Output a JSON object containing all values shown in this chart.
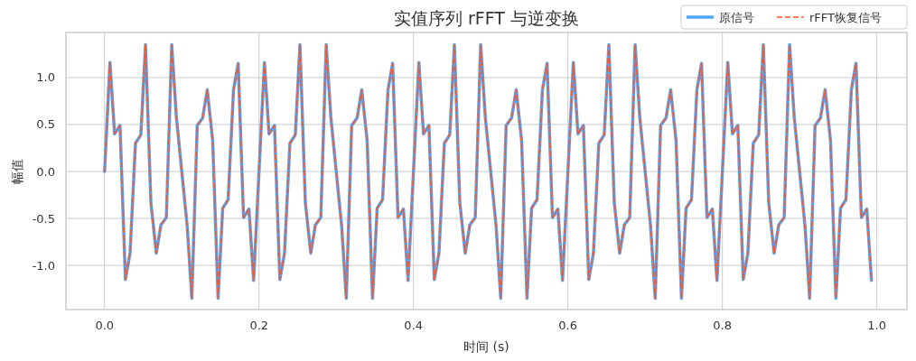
{
  "chart_data": {
    "type": "line",
    "title": "实值序列 rFFT 与逆变换",
    "xlabel": "时间 (s)",
    "ylabel": "幅值",
    "x": [
      0.0,
      0.007,
      0.013,
      0.02,
      0.027,
      0.033,
      0.04,
      0.047,
      0.053,
      0.06,
      0.067,
      0.073,
      0.08,
      0.087,
      0.093,
      0.1,
      0.107,
      0.113,
      0.12,
      0.127,
      0.133,
      0.14,
      0.147,
      0.153,
      0.16,
      0.167,
      0.173,
      0.18,
      0.187,
      0.193,
      0.2,
      0.207,
      0.213,
      0.22,
      0.227,
      0.233,
      0.24,
      0.247,
      0.253,
      0.26,
      0.267,
      0.273,
      0.28,
      0.287,
      0.293,
      0.3,
      0.307,
      0.313,
      0.32,
      0.327,
      0.333,
      0.34,
      0.347,
      0.353,
      0.36,
      0.367,
      0.373,
      0.38,
      0.387,
      0.393,
      0.4,
      0.407,
      0.413,
      0.42,
      0.427,
      0.433,
      0.44,
      0.447,
      0.453,
      0.46,
      0.467,
      0.473,
      0.48,
      0.487,
      0.493,
      0.5,
      0.507,
      0.513,
      0.52,
      0.527,
      0.533,
      0.54,
      0.547,
      0.553,
      0.56,
      0.567,
      0.573,
      0.58,
      0.587,
      0.593,
      0.6,
      0.607,
      0.613,
      0.62,
      0.627,
      0.633,
      0.64,
      0.647,
      0.653,
      0.66,
      0.667,
      0.673,
      0.68,
      0.687,
      0.693,
      0.7,
      0.707,
      0.713,
      0.72,
      0.727,
      0.733,
      0.74,
      0.747,
      0.753,
      0.76,
      0.767,
      0.773,
      0.78,
      0.787,
      0.793,
      0.8,
      0.807,
      0.813,
      0.82,
      0.827,
      0.833,
      0.84,
      0.847,
      0.853,
      0.86,
      0.867,
      0.873,
      0.88,
      0.887,
      0.893,
      0.9,
      0.907,
      0.913,
      0.92,
      0.927,
      0.933,
      0.94,
      0.947,
      0.953,
      0.96,
      0.967,
      0.973,
      0.98,
      0.987,
      0.993
    ],
    "series": [
      {
        "name": "原信号",
        "color": "#4da6ff",
        "line_style": "solid",
        "values": [
          0,
          1.16,
          0.4,
          0.49,
          -1.15,
          -0.87,
          0.3,
          0.39,
          1.35,
          -0.33,
          -0.87,
          -0.57,
          -0.49,
          1.35,
          0.58,
          0,
          -0.58,
          -1.35,
          0.49,
          0.57,
          0.87,
          0.33,
          -1.35,
          -0.39,
          -0.3,
          0.87,
          1.15,
          -0.49,
          -0.4,
          -1.16,
          0,
          1.16,
          0.4,
          0.49,
          -1.15,
          -0.87,
          0.3,
          0.39,
          1.35,
          -0.33,
          -0.87,
          -0.57,
          -0.49,
          1.35,
          0.58,
          0,
          -0.58,
          -1.35,
          0.49,
          0.57,
          0.87,
          0.33,
          -1.35,
          -0.39,
          -0.3,
          0.87,
          1.15,
          -0.49,
          -0.4,
          -1.16,
          0,
          1.16,
          0.4,
          0.49,
          -1.15,
          -0.87,
          0.3,
          0.39,
          1.35,
          -0.33,
          -0.87,
          -0.57,
          -0.49,
          1.35,
          0.58,
          0,
          -0.58,
          -1.35,
          0.49,
          0.57,
          0.87,
          0.33,
          -1.35,
          -0.39,
          -0.3,
          0.87,
          1.15,
          -0.49,
          -0.4,
          -1.16,
          0,
          1.16,
          0.4,
          0.49,
          -1.15,
          -0.87,
          0.3,
          0.39,
          1.35,
          -0.33,
          -0.87,
          -0.57,
          -0.49,
          1.35,
          0.58,
          0,
          -0.58,
          -1.35,
          0.49,
          0.57,
          0.87,
          0.33,
          -1.35,
          -0.39,
          -0.3,
          0.87,
          1.15,
          -0.49,
          -0.4,
          -1.16,
          0,
          1.16,
          0.4,
          0.49,
          -1.15,
          -0.87,
          0.3,
          0.39,
          1.35,
          -0.33,
          -0.87,
          -0.57,
          -0.49,
          1.35,
          0.58,
          0,
          -0.58,
          -1.35,
          0.49,
          0.57,
          0.87,
          0.33,
          -1.35,
          -0.39,
          -0.3,
          0.87,
          1.15,
          -0.49,
          -0.4,
          -1.16
        ]
      },
      {
        "name": "rFFT恢复信号",
        "color": "#ff5722",
        "line_style": "dashed",
        "values": [
          0,
          1.16,
          0.4,
          0.49,
          -1.15,
          -0.87,
          0.3,
          0.39,
          1.35,
          -0.33,
          -0.87,
          -0.57,
          -0.49,
          1.35,
          0.58,
          0,
          -0.58,
          -1.35,
          0.49,
          0.57,
          0.87,
          0.33,
          -1.35,
          -0.39,
          -0.3,
          0.87,
          1.15,
          -0.49,
          -0.4,
          -1.16,
          0,
          1.16,
          0.4,
          0.49,
          -1.15,
          -0.87,
          0.3,
          0.39,
          1.35,
          -0.33,
          -0.87,
          -0.57,
          -0.49,
          1.35,
          0.58,
          0,
          -0.58,
          -1.35,
          0.49,
          0.57,
          0.87,
          0.33,
          -1.35,
          -0.39,
          -0.3,
          0.87,
          1.15,
          -0.49,
          -0.4,
          -1.16,
          0,
          1.16,
          0.4,
          0.49,
          -1.15,
          -0.87,
          0.3,
          0.39,
          1.35,
          -0.33,
          -0.87,
          -0.57,
          -0.49,
          1.35,
          0.58,
          0,
          -0.58,
          -1.35,
          0.49,
          0.57,
          0.87,
          0.33,
          -1.35,
          -0.39,
          -0.3,
          0.87,
          1.15,
          -0.49,
          -0.4,
          -1.16,
          0,
          1.16,
          0.4,
          0.49,
          -1.15,
          -0.87,
          0.3,
          0.39,
          1.35,
          -0.33,
          -0.87,
          -0.57,
          -0.49,
          1.35,
          0.58,
          0,
          -0.58,
          -1.35,
          0.49,
          0.57,
          0.87,
          0.33,
          -1.35,
          -0.39,
          -0.3,
          0.87,
          1.15,
          -0.49,
          -0.4,
          -1.16,
          0,
          1.16,
          0.4,
          0.49,
          -1.15,
          -0.87,
          0.3,
          0.39,
          1.35,
          -0.33,
          -0.87,
          -0.57,
          -0.49,
          1.35,
          0.58,
          0,
          -0.58,
          -1.35,
          0.49,
          0.57,
          0.87,
          0.33,
          -1.35,
          -0.39,
          -0.3,
          0.87,
          1.15,
          -0.49,
          -0.4,
          -1.16
        ]
      }
    ],
    "xlim": [
      -0.05,
      1.039
    ],
    "ylim": [
      -1.47,
      1.48
    ],
    "xticks": [
      {
        "value": 0,
        "label": "0.0"
      },
      {
        "value": 0.2,
        "label": "0.2"
      },
      {
        "value": 0.4,
        "label": "0.4"
      },
      {
        "value": 0.6,
        "label": "0.6"
      },
      {
        "value": 0.8,
        "label": "0.8"
      },
      {
        "value": 1,
        "label": "1.0"
      }
    ],
    "yticks": [
      {
        "value": -1,
        "label": "-1.0"
      },
      {
        "value": -0.5,
        "label": "-0.5"
      },
      {
        "value": 0,
        "label": "0.0"
      },
      {
        "value": 0.5,
        "label": "0.5"
      },
      {
        "value": 1,
        "label": "1.0"
      }
    ],
    "grid": true,
    "legend": "top right"
  }
}
